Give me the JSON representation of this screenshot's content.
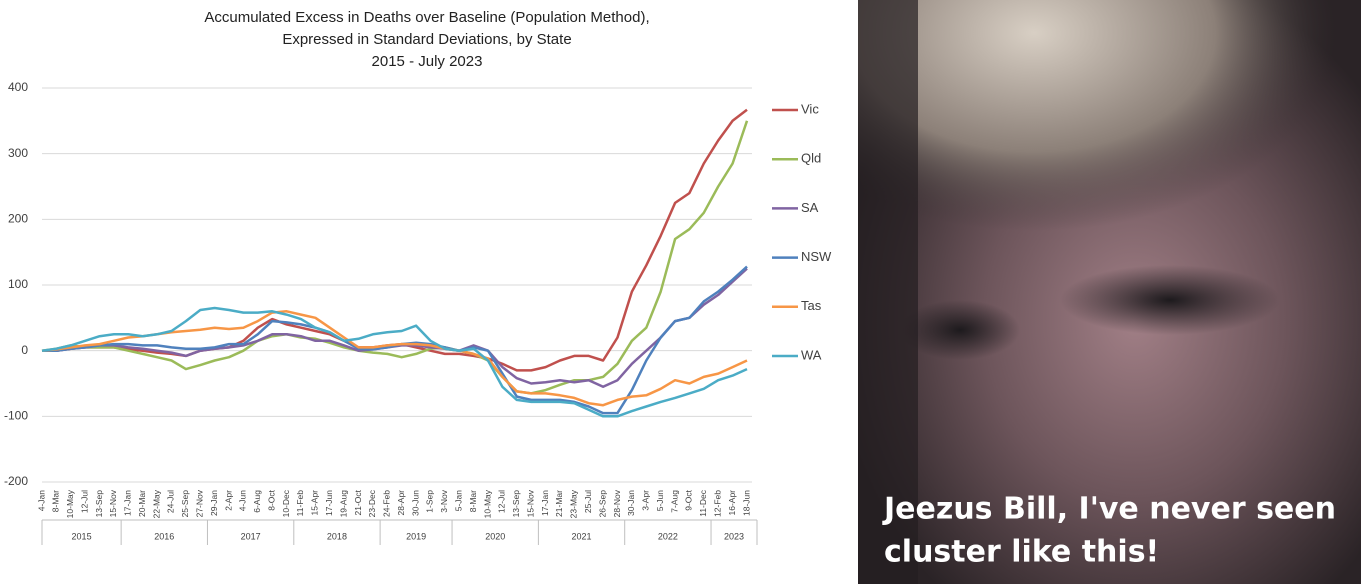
{
  "chart_data": {
    "type": "line",
    "title": [
      "Accumulated Excess in Deaths over Baseline (Population Method),",
      "Expressed in Standard Deviations,  by State",
      "2015 - July 2023"
    ],
    "categories": [
      "4-Jan",
      "8-Mar",
      "10-May",
      "12-Jul",
      "13-Sep",
      "15-Nov",
      "17-Jan",
      "20-Mar",
      "22-May",
      "24-Jul",
      "25-Sep",
      "27-Nov",
      "29-Jan",
      "2-Apr",
      "4-Jun",
      "6-Aug",
      "8-Oct",
      "10-Dec",
      "11-Feb",
      "15-Apr",
      "17-Jun",
      "19-Aug",
      "21-Oct",
      "23-Dec",
      "24-Feb",
      "28-Apr",
      "30-Jun",
      "1-Sep",
      "3-Nov",
      "5-Jan",
      "8-Mar",
      "10-May",
      "12-Jul",
      "13-Sep",
      "15-Nov",
      "17-Jan",
      "21-Mar",
      "23-May",
      "25-Jul",
      "26-Sep",
      "28-Nov",
      "30-Jan",
      "3-Apr",
      "5-Jun",
      "7-Aug",
      "9-Oct",
      "11-Dec",
      "12-Feb",
      "16-Apr",
      "18-Jun"
    ],
    "category_groups": [
      "2015",
      "2015",
      "2015",
      "2015",
      "2015",
      "2015",
      "2016",
      "2016",
      "2016",
      "2016",
      "2016",
      "2016",
      "2017",
      "2017",
      "2017",
      "2017",
      "2017",
      "2017",
      "2018",
      "2018",
      "2018",
      "2018",
      "2018",
      "2018",
      "2019",
      "2019",
      "2019",
      "2019",
      "2019",
      "2020",
      "2020",
      "2020",
      "2020",
      "2020",
      "2020",
      "2021",
      "2021",
      "2021",
      "2021",
      "2021",
      "2021",
      "2022",
      "2022",
      "2022",
      "2022",
      "2022",
      "2022",
      "2023",
      "2023",
      "2023"
    ],
    "series": [
      {
        "name": "Vic",
        "color": "#c0504d",
        "values": [
          0,
          0,
          3,
          5,
          5,
          5,
          2,
          0,
          -3,
          -5,
          -8,
          0,
          3,
          5,
          15,
          35,
          48,
          40,
          35,
          30,
          25,
          15,
          5,
          5,
          8,
          10,
          5,
          0,
          -5,
          -5,
          -8,
          -12,
          -20,
          -30,
          -30,
          -25,
          -15,
          -8,
          -8,
          -15,
          20,
          90,
          130,
          175,
          225,
          240,
          285,
          320,
          350,
          367
        ]
      },
      {
        "name": "Qld",
        "color": "#9bbb59",
        "values": [
          0,
          3,
          8,
          5,
          5,
          5,
          0,
          -5,
          -10,
          -15,
          -28,
          -22,
          -15,
          -10,
          0,
          15,
          22,
          25,
          20,
          18,
          12,
          5,
          0,
          -3,
          -5,
          -10,
          -5,
          3,
          5,
          0,
          -5,
          -15,
          -40,
          -62,
          -65,
          -60,
          -52,
          -45,
          -45,
          -40,
          -20,
          15,
          35,
          90,
          170,
          185,
          210,
          250,
          285,
          350
        ]
      },
      {
        "name": "SA",
        "color": "#8064a2",
        "values": [
          0,
          0,
          3,
          5,
          8,
          8,
          5,
          3,
          0,
          -3,
          -8,
          0,
          3,
          5,
          8,
          15,
          25,
          25,
          22,
          15,
          15,
          8,
          0,
          2,
          5,
          8,
          8,
          5,
          3,
          0,
          8,
          0,
          -25,
          -42,
          -50,
          -48,
          -45,
          -48,
          -45,
          -55,
          -45,
          -20,
          0,
          20,
          45,
          50,
          70,
          85,
          105,
          125
        ]
      },
      {
        "name": "NSW",
        "color": "#4f81bd",
        "values": [
          0,
          0,
          3,
          5,
          8,
          10,
          10,
          8,
          8,
          5,
          3,
          3,
          5,
          10,
          10,
          25,
          45,
          43,
          40,
          35,
          28,
          15,
          3,
          2,
          5,
          10,
          12,
          10,
          5,
          0,
          5,
          0,
          -35,
          -70,
          -75,
          -75,
          -75,
          -78,
          -85,
          -95,
          -95,
          -60,
          -15,
          20,
          45,
          50,
          75,
          90,
          108,
          128
        ]
      },
      {
        "name": "Tas",
        "color": "#f79646",
        "values": [
          0,
          2,
          5,
          8,
          10,
          15,
          20,
          22,
          25,
          28,
          30,
          32,
          35,
          33,
          35,
          45,
          58,
          60,
          55,
          50,
          35,
          20,
          5,
          5,
          8,
          10,
          10,
          8,
          3,
          0,
          -5,
          -12,
          -40,
          -62,
          -65,
          -65,
          -68,
          -72,
          -80,
          -83,
          -75,
          -70,
          -68,
          -58,
          -45,
          -50,
          -40,
          -35,
          -25,
          -15
        ]
      },
      {
        "name": "WA",
        "color": "#4bacc6",
        "values": [
          0,
          3,
          8,
          15,
          22,
          25,
          25,
          22,
          25,
          30,
          45,
          62,
          65,
          62,
          58,
          58,
          60,
          55,
          48,
          35,
          28,
          15,
          18,
          25,
          28,
          30,
          38,
          15,
          3,
          0,
          3,
          -15,
          -55,
          -75,
          -78,
          -78,
          -78,
          -80,
          -90,
          -100,
          -100,
          -92,
          -85,
          -78,
          -72,
          -65,
          -58,
          -45,
          -38,
          -28
        ]
      }
    ],
    "ylim": [
      -200,
      400
    ],
    "yticks": [
      -200,
      -100,
      0,
      100,
      200,
      300,
      400
    ],
    "grid": true,
    "legend": "right"
  },
  "image": {
    "caption": [
      "Jeezus Bill, I've never seen",
      "cluster like this!"
    ]
  }
}
